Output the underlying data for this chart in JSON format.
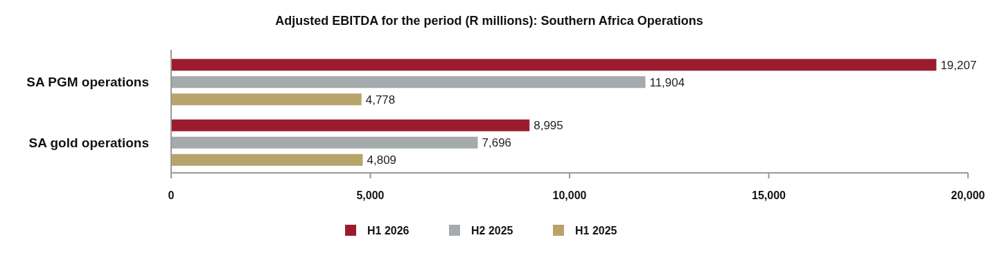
{
  "chart_data": {
    "type": "bar",
    "orientation": "horizontal",
    "title": "Adjusted EBITDA for the period (R millions): Southern Africa Operations",
    "categories": [
      "SA PGM operations",
      "SA gold operations"
    ],
    "series": [
      {
        "name": "H1 2026",
        "color": "#9b1c2e",
        "values": [
          19207,
          8995
        ],
        "value_labels": [
          "19,207",
          "8,995"
        ]
      },
      {
        "name": "H2 2025",
        "color": "#a5aaad",
        "values": [
          11904,
          7696
        ],
        "value_labels": [
          "11,904",
          "7,696"
        ]
      },
      {
        "name": "H1 2025",
        "color": "#b8a46a",
        "values": [
          4778,
          4809
        ],
        "value_labels": [
          "4,778",
          "4,809"
        ]
      }
    ],
    "xlim": [
      0,
      20000
    ],
    "xticks": [
      {
        "value": 0,
        "label": "0"
      },
      {
        "value": 5000,
        "label": "5,000"
      },
      {
        "value": 10000,
        "label": "10,000"
      },
      {
        "value": 15000,
        "label": "15,000"
      },
      {
        "value": 20000,
        "label": "20,000"
      }
    ],
    "legend": "bottom",
    "grid": false
  }
}
